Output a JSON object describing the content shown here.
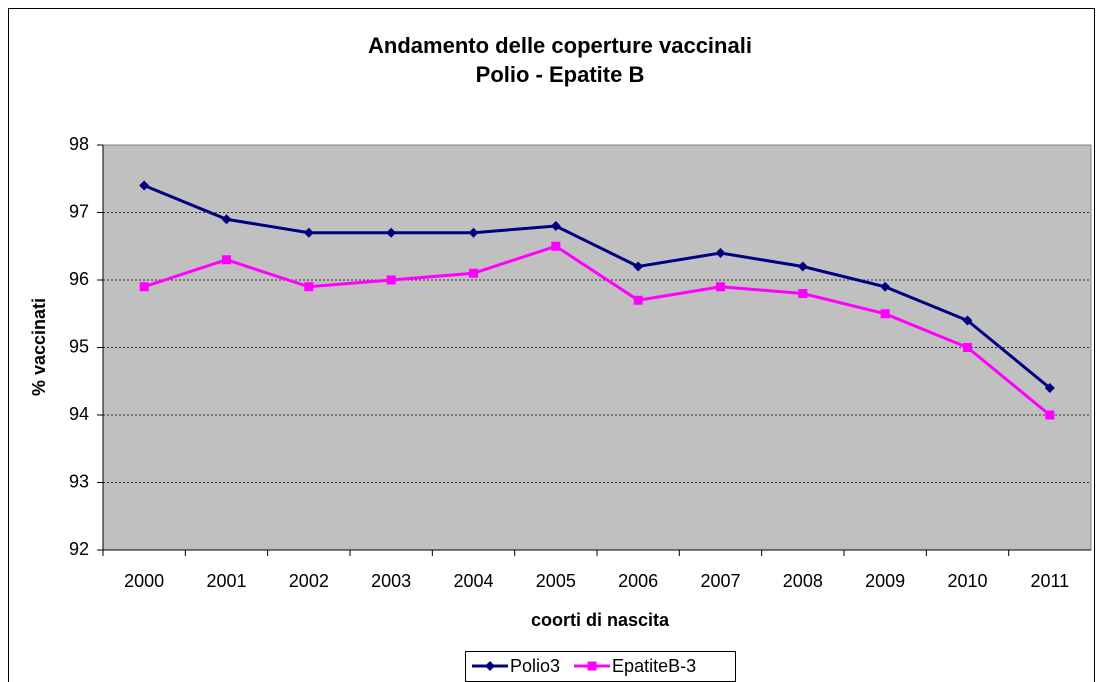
{
  "chart_data": {
    "type": "line",
    "title": "Andamento delle coperture vaccinali",
    "subtitle": "Polio - Epatite B",
    "x_label": "coorti di nascita",
    "y_label": "% vaccinati",
    "categories": [
      "2000",
      "2001",
      "2002",
      "2003",
      "2004",
      "2005",
      "2006",
      "2007",
      "2008",
      "2009",
      "2010",
      "2011"
    ],
    "series": [
      {
        "name": "Polio3",
        "color": "#000080",
        "marker": "diamond",
        "values": [
          97.4,
          96.9,
          96.7,
          96.7,
          96.7,
          96.8,
          96.2,
          96.4,
          96.2,
          95.9,
          95.4,
          94.4
        ]
      },
      {
        "name": "EpatiteB-3",
        "color": "#ff00ff",
        "marker": "square",
        "values": [
          95.9,
          96.3,
          95.9,
          96.0,
          96.1,
          96.5,
          95.7,
          95.9,
          95.8,
          95.5,
          95.0,
          94.0
        ]
      }
    ],
    "ylim": [
      92,
      98
    ],
    "yticks": [
      92,
      93,
      94,
      95,
      96,
      97,
      98
    ],
    "grid": true,
    "legend": "bottom"
  }
}
